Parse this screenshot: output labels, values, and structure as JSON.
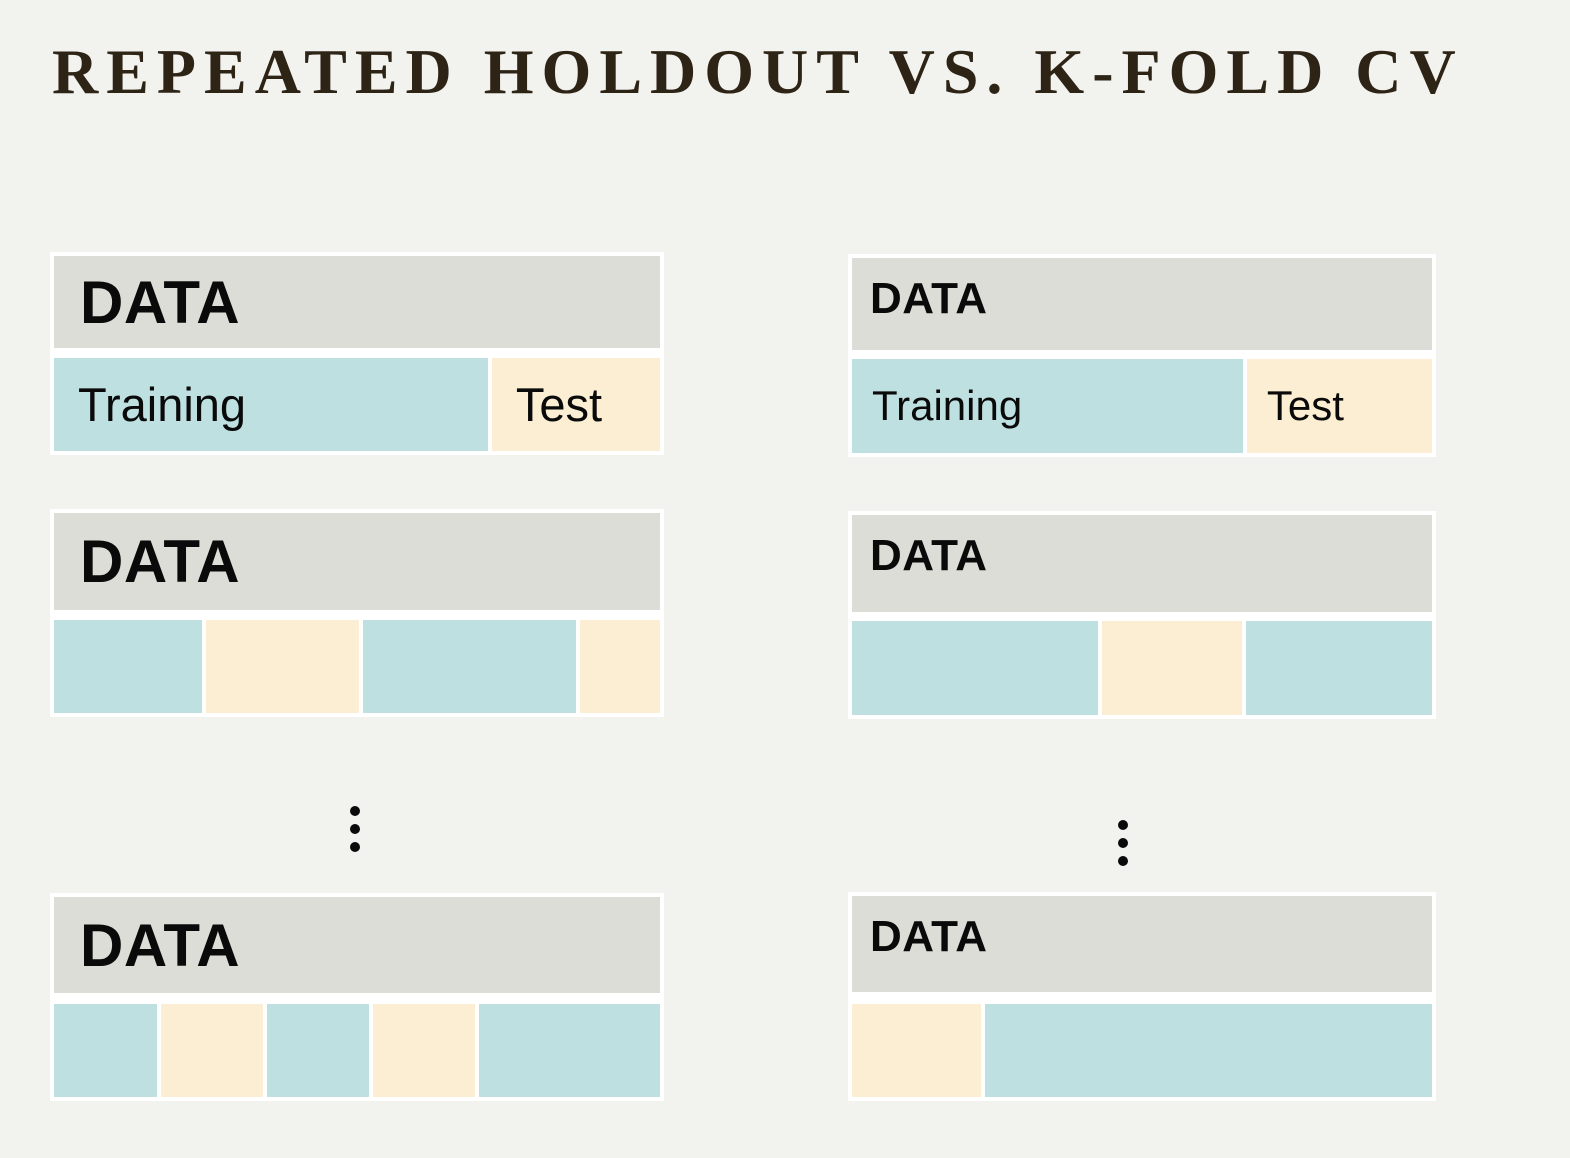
{
  "title": "REPEATED HOLDOUT VS. K-FOLD CV",
  "ellipsis_glyph": "⋮",
  "colors": {
    "background": "#f2f2ef",
    "panel_frame": "#ffffff",
    "data_bar_gray": "#dcddd6",
    "training_blue": "#bfe0e1",
    "test_cream": "#fbeed3",
    "title_text": "#2e2416",
    "label_text": "#0a0a0a"
  },
  "panels": {
    "l1": {
      "data_label": "DATA",
      "segments": [
        {
          "role": "training",
          "label": "Training",
          "width_pct": 71.6
        },
        {
          "role": "test",
          "label": "Test"
        }
      ]
    },
    "l2": {
      "data_label": "DATA",
      "segments": [
        {
          "role": "training",
          "width_pct": 24.5
        },
        {
          "role": "test",
          "width_pct": 25.1
        },
        {
          "role": "training",
          "width_pct": 35.2
        },
        {
          "role": "test"
        }
      ]
    },
    "l3": {
      "data_label": "DATA",
      "segments": [
        {
          "role": "training",
          "width_pct": 17.0
        },
        {
          "role": "test",
          "width_pct": 16.9
        },
        {
          "role": "training",
          "width_pct": 16.7
        },
        {
          "role": "test",
          "width_pct": 16.9
        },
        {
          "role": "training"
        }
      ]
    },
    "r1": {
      "data_label": "DATA",
      "segments": [
        {
          "role": "training",
          "label": "Training",
          "width_pct": 67.4
        },
        {
          "role": "test",
          "label": "Test"
        }
      ]
    },
    "r2": {
      "data_label": "DATA",
      "segments": [
        {
          "role": "training",
          "width_pct": 42.4
        },
        {
          "role": "test",
          "width_pct": 24.1
        },
        {
          "role": "training"
        }
      ]
    },
    "r3": {
      "data_label": "DATA",
      "segments": [
        {
          "role": "test",
          "width_pct": 22.2
        },
        {
          "role": "training"
        }
      ]
    }
  }
}
